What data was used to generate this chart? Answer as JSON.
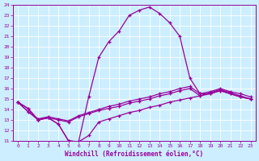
{
  "xlabel": "Windchill (Refroidissement éolien,°C)",
  "bg_color": "#cceeff",
  "line_color": "#990099",
  "grid_color": "#ffffff",
  "xlim": [
    -0.5,
    23.5
  ],
  "ylim": [
    11,
    24
  ],
  "xticks": [
    0,
    1,
    2,
    3,
    4,
    5,
    6,
    7,
    8,
    9,
    10,
    11,
    12,
    13,
    14,
    15,
    16,
    17,
    18,
    19,
    20,
    21,
    22,
    23
  ],
  "yticks": [
    11,
    12,
    13,
    14,
    15,
    16,
    17,
    18,
    19,
    20,
    21,
    22,
    23,
    24
  ],
  "lines": [
    [
      14.7,
      14.1,
      13.0,
      13.2,
      12.6,
      11.0,
      10.9,
      15.2,
      19.0,
      20.5,
      21.5,
      23.0,
      23.5,
      23.8,
      23.2,
      22.3,
      21.0,
      17.0,
      15.5,
      15.5,
      15.8,
      15.5,
      15.2,
      15.0
    ],
    [
      14.7,
      14.1,
      13.0,
      13.2,
      12.6,
      11.0,
      10.9,
      11.5,
      12.8,
      13.1,
      13.4,
      13.7,
      13.9,
      14.2,
      14.4,
      14.7,
      14.9,
      15.1,
      15.3,
      15.6,
      15.9,
      15.6,
      15.3,
      15.0
    ],
    [
      14.7,
      13.8,
      13.0,
      13.2,
      13.0,
      12.8,
      13.3,
      13.6,
      13.9,
      14.1,
      14.3,
      14.6,
      14.8,
      15.0,
      15.3,
      15.5,
      15.8,
      16.0,
      15.3,
      15.5,
      15.8,
      15.5,
      15.2,
      15.0
    ],
    [
      14.7,
      13.8,
      13.1,
      13.3,
      13.1,
      12.9,
      13.4,
      13.7,
      14.0,
      14.3,
      14.5,
      14.8,
      15.0,
      15.2,
      15.5,
      15.7,
      16.0,
      16.2,
      15.5,
      15.7,
      16.0,
      15.7,
      15.5,
      15.2
    ]
  ]
}
